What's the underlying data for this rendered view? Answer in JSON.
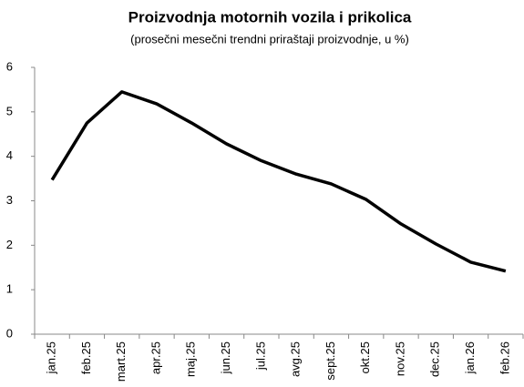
{
  "chart_data": {
    "type": "line",
    "title": "Proizvodnja motornih vozila i prikolica",
    "subtitle": "(prosečni mesečni trendni priraštaji proizvodnje, u %)",
    "categories": [
      "jan.25",
      "feb.25",
      "mart.25",
      "apr.25",
      "maj.25",
      "jun.25",
      "jul.25",
      "avg.25",
      "sept.25",
      "okt.25",
      "nov.25",
      "dec.25",
      "jan.26",
      "feb.26"
    ],
    "series": [
      {
        "color": "#000000",
        "values": [
          3.47,
          4.75,
          5.45,
          5.18,
          4.75,
          4.28,
          3.9,
          3.6,
          3.38,
          3.03,
          2.48,
          2.03,
          1.62,
          1.42
        ]
      }
    ],
    "ylim": [
      0,
      6
    ],
    "yticks": [
      0,
      1,
      2,
      3,
      4,
      5,
      6
    ],
    "grid": false
  }
}
